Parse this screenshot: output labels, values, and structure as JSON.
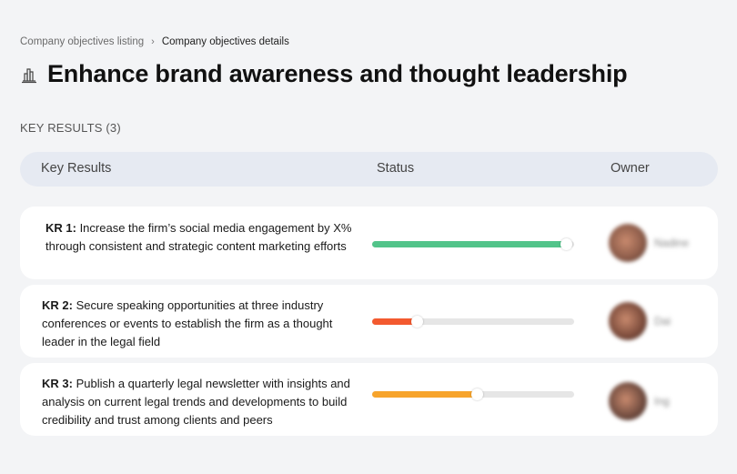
{
  "breadcrumb": {
    "parent": "Company objectives listing",
    "separator": "›",
    "current": "Company objectives details"
  },
  "objective": {
    "icon": "building-chart-icon",
    "title": "Enhance brand awareness and thought leadership"
  },
  "key_results_section": {
    "label": "KEY RESULTS (3)"
  },
  "table": {
    "headers": {
      "key_results": "Key Results",
      "status": "Status",
      "owner": "Owner"
    },
    "rows": [
      {
        "kr_label": "KR 1:",
        "kr_text": " Increase the firm’s social media engagement by X% through consistent and strategic content marketing efforts",
        "progress": 96,
        "color": "#52c48a",
        "owner": "Nadine",
        "avatar_color": "#8a5a48"
      },
      {
        "kr_label": "KR 2:",
        "kr_text": " Secure speaking opportunities at three industry conferences or events to establish the firm as a thought leader in the legal field",
        "progress": 22,
        "color": "#f35a2f",
        "owner": "Dai",
        "avatar_color": "#7a4a3a"
      },
      {
        "kr_label": "KR 3:",
        "kr_text": " Publish a quarterly legal newsletter with insights and analysis on current legal trends and developments to build credibility and trust among clients and peers",
        "progress": 52,
        "color": "#f7a42c",
        "owner": "Ing",
        "avatar_color": "#6e4a3e"
      }
    ]
  }
}
